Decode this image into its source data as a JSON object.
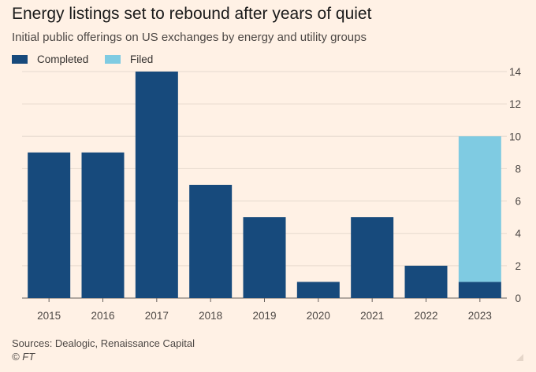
{
  "title": "Energy listings set to rebound after years of quiet",
  "subtitle": "Initial public offerings on US exchanges by energy and utility groups",
  "legend": {
    "completed": "Completed",
    "filed": "Filed"
  },
  "source": "Sources: Dealogic, Renaissance Capital",
  "credit": "© FT",
  "colors": {
    "background": "#fff1e5",
    "completed": "#174a7c",
    "filed": "#7fcbe2",
    "grid": "#e6d9ce"
  },
  "chart_data": {
    "type": "bar",
    "stacked": true,
    "categories": [
      "2015",
      "2016",
      "2017",
      "2018",
      "2019",
      "2020",
      "2021",
      "2022",
      "2023"
    ],
    "series": [
      {
        "name": "Completed",
        "color": "#174a7c",
        "values": [
          9,
          9,
          14,
          7,
          5,
          1,
          5,
          2,
          1
        ]
      },
      {
        "name": "Filed",
        "color": "#7fcbe2",
        "values": [
          0,
          0,
          0,
          0,
          0,
          0,
          0,
          0,
          9
        ]
      }
    ],
    "title": "Energy listings set to rebound after years of quiet",
    "subtitle": "Initial public offerings on US exchanges by energy and utility groups",
    "xlabel": "",
    "ylabel": "",
    "ylim": [
      0,
      14
    ],
    "yticks": [
      0,
      2,
      4,
      6,
      8,
      10,
      12,
      14
    ],
    "y_axis_side": "right",
    "grid": true,
    "legend_position": "top-left"
  }
}
